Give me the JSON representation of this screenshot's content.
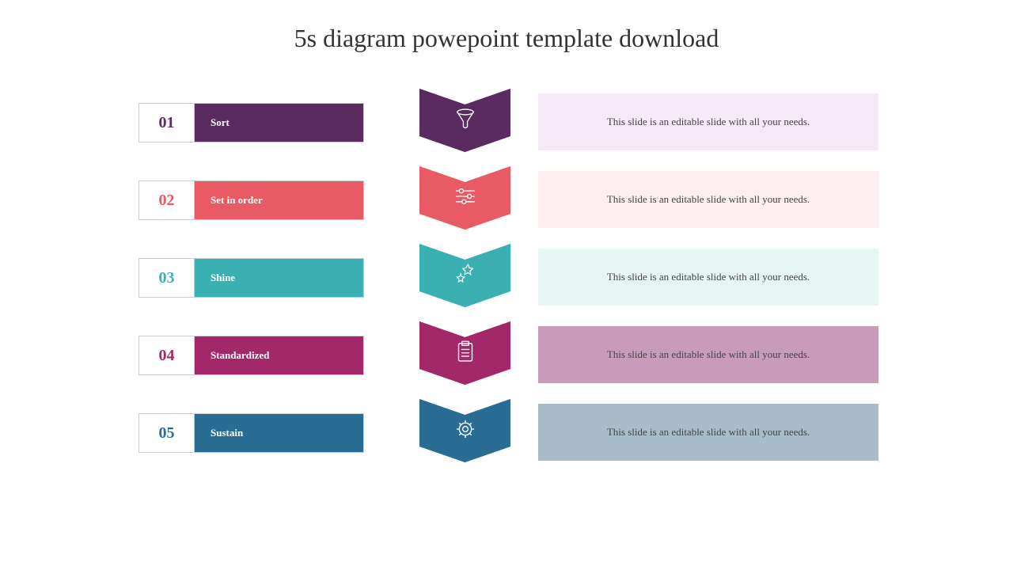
{
  "title": "5s diagram powepoint template download",
  "steps": [
    {
      "num": "01",
      "label": "Sort",
      "color": "#5a2a61",
      "desc_bg": "#f5e9f7",
      "icon": "funnel"
    },
    {
      "num": "02",
      "label": "Set in order",
      "color": "#e85a64",
      "desc_bg": "#fdeff0",
      "icon": "sliders"
    },
    {
      "num": "03",
      "label": "Shine",
      "color": "#3bb0b2",
      "desc_bg": "#e8f5f5",
      "icon": "stars"
    },
    {
      "num": "04",
      "label": "Standardized",
      "color": "#a32869",
      "desc_bg": "#ca9bb8",
      "icon": "clipboard"
    },
    {
      "num": "05",
      "label": "Sustain",
      "color": "#2a6d94",
      "desc_bg": "#a8bdc9",
      "icon": "gear"
    }
  ],
  "description_text": "This slide is an editable slide with all your needs.",
  "title_color": "#333333",
  "title_fontsize": 32,
  "label_fontsize": 13,
  "num_fontsize": 20,
  "desc_fontsize": 13,
  "chevron_notch": 20
}
